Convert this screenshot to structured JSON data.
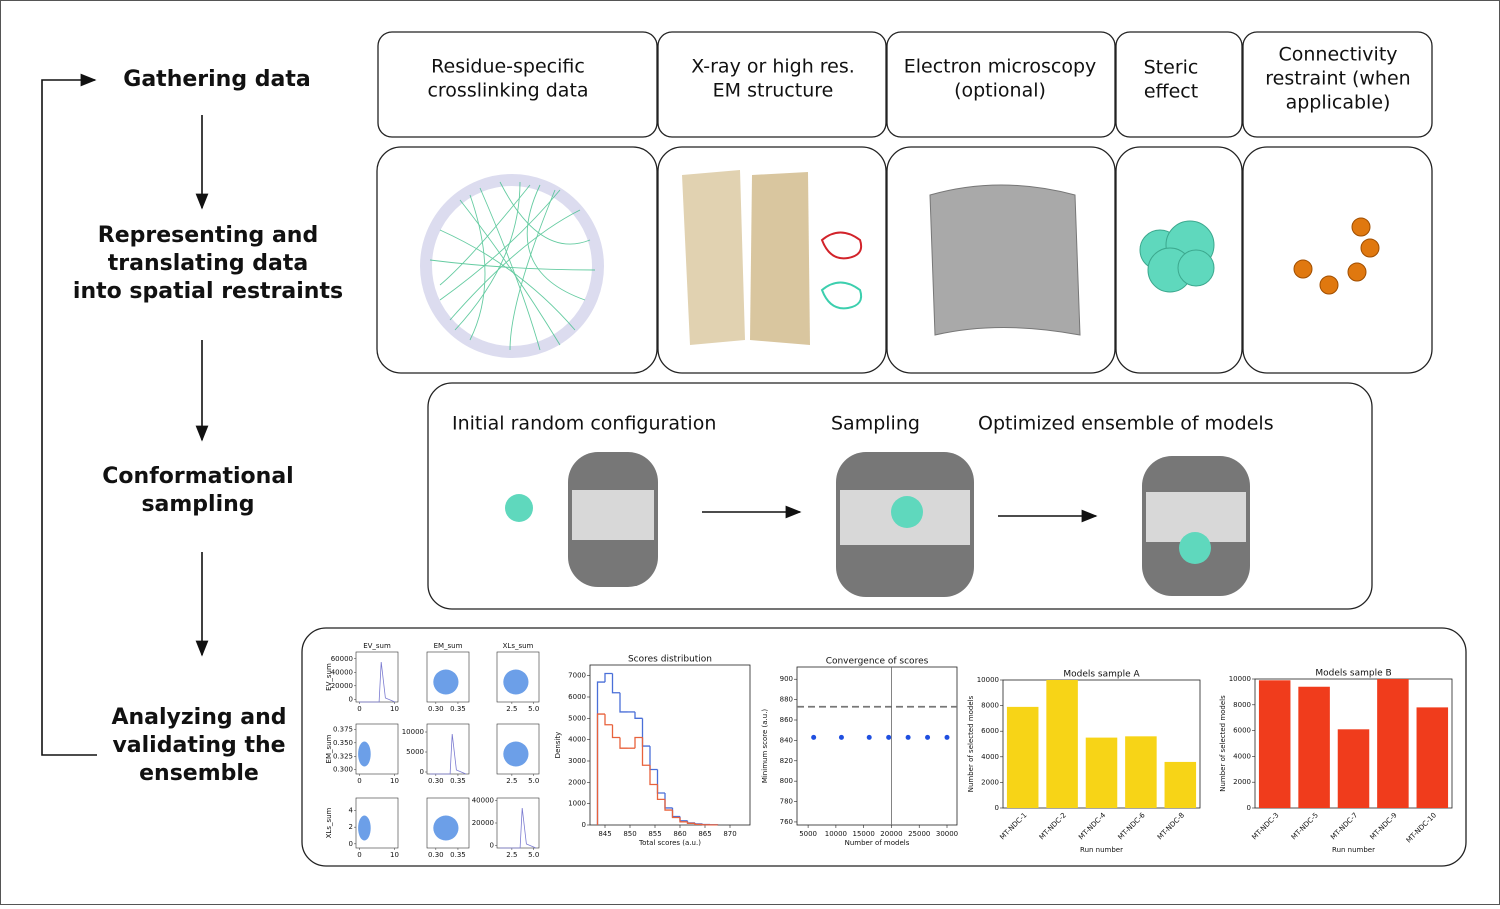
{
  "stages": [
    [
      "Gathering data"
    ],
    [
      "Representing and",
      "translating data",
      "into spatial restraints"
    ],
    [
      "Conformational",
      "sampling"
    ],
    [
      "Analyzing and",
      "validating the",
      "ensemble"
    ]
  ],
  "sources": [
    [
      "Residue-specific",
      "crosslinking data"
    ],
    [
      "X-ray or high res.",
      "EM structure"
    ],
    [
      "Electron microscopy",
      "(optional)"
    ],
    [
      "Steric",
      "effect"
    ],
    [
      "Connectivity",
      "restraint (when",
      "applicable)"
    ]
  ],
  "sampling": [
    "Initial random configuration",
    "Sampling",
    "Optimized ensemble of models"
  ],
  "scatter_matrix": {
    "variables": [
      "EV_sum",
      "EM_sum",
      "XLs_sum"
    ],
    "xlims": [
      [
        -1,
        11
      ],
      [
        0.28,
        0.375
      ],
      [
        0.8,
        5.6
      ]
    ],
    "ylims": [
      [
        -4000,
        70000
      ],
      [
        0.292,
        0.385
      ],
      [
        -0.5,
        5.5
      ]
    ],
    "x_ticks": [
      [
        0,
        10
      ],
      [
        {
          "value": 0.3,
          "label": "0.30"
        },
        {
          "value": 0.35,
          "label": "0.35"
        }
      ],
      [
        {
          "value": 2.5,
          "label": "2.5"
        },
        {
          "value": 5,
          "label": "5.0"
        }
      ]
    ],
    "y_ticks": [
      [
        0,
        20000,
        40000,
        60000
      ],
      [
        {
          "value": 0.3,
          "label": "0.300"
        },
        {
          "value": 0.325,
          "label": "0.325"
        },
        {
          "value": 0.35,
          "label": "0.350"
        },
        {
          "value": 0.375,
          "label": "0.375"
        }
      ],
      [
        0,
        2,
        4
      ]
    ],
    "diag_ylims": [
      [
        -4000,
        70000
      ],
      [
        -500,
        12000
      ],
      [
        -2000,
        42000
      ]
    ],
    "diag_yticks": [
      [],
      [
        0,
        5000,
        10000
      ],
      [
        0,
        20000,
        40000
      ]
    ]
  },
  "charts": [
    {
      "type": "histogram",
      "title": "Scores distribution",
      "x_label": "Total scores (a.u.)",
      "y_label": "Density",
      "bins": [
        843.5,
        845,
        846.5,
        848,
        849.5,
        851,
        852.5,
        854,
        855.5,
        857,
        858.5,
        860,
        861.5,
        863,
        864.5,
        866,
        867.5
      ],
      "series": [
        {
          "color": "#4a6fd8",
          "values": [
            6700,
            7100,
            6200,
            5300,
            5300,
            5000,
            3700,
            2600,
            1500,
            800,
            400,
            200,
            100,
            50,
            20,
            10
          ]
        },
        {
          "color": "#e8623c",
          "values": [
            5200,
            4700,
            4100,
            3600,
            3600,
            4100,
            2800,
            1900,
            1200,
            700,
            350,
            150,
            80,
            30,
            10,
            5
          ]
        }
      ],
      "xlim": [
        842,
        874
      ],
      "xticks": [
        845,
        850,
        855,
        860,
        865,
        870
      ],
      "ylim": [
        0,
        7500
      ],
      "yticks": [
        0,
        1000,
        2000,
        3000,
        4000,
        5000,
        6000,
        7000
      ]
    },
    {
      "type": "scatter",
      "title": "Convergence of scores",
      "x_label": "Number of models",
      "y_label": "Minimum score (a.u.)",
      "x": [
        6000,
        11000,
        16000,
        19500,
        23000,
        26500,
        30000
      ],
      "values": [
        843,
        843,
        843,
        843,
        843,
        843,
        843
      ],
      "color": "#1f4fe0",
      "hline": 873,
      "vline": 20000,
      "xlim": [
        3000,
        31800
      ],
      "xticks": [
        5000,
        10000,
        15000,
        20000,
        25000,
        30000
      ],
      "ylim": [
        757,
        912
      ],
      "yticks": [
        760,
        780,
        800,
        820,
        840,
        860,
        880,
        900
      ]
    },
    {
      "type": "bar",
      "title": "Models sample A",
      "x_label": "Run number",
      "y_label": "Number of selected models",
      "categories": [
        "MT-NDC-1",
        "MT-NDC-2",
        "MT-NDC-4",
        "MT-NDC-6",
        "MT-NDC-8"
      ],
      "values": [
        7900,
        10000,
        5500,
        5600,
        3600
      ],
      "color": "#f7d417",
      "ylim": [
        0,
        10000
      ],
      "yticks": [
        0,
        2000,
        4000,
        6000,
        8000,
        10000
      ]
    },
    {
      "type": "bar",
      "title": "Models sample B",
      "x_label": "Run number",
      "y_label": "Number of selected models",
      "categories": [
        "MT-NDC-3",
        "MT-NDC-5",
        "MT-NDC-7",
        "MT-NDC-9",
        "MT-NDC-10"
      ],
      "values": [
        9900,
        9400,
        6100,
        10000,
        7800
      ],
      "color": "#f03c1c",
      "ylim": [
        0,
        10000
      ],
      "yticks": [
        0,
        2000,
        4000,
        6000,
        8000,
        10000
      ]
    }
  ]
}
